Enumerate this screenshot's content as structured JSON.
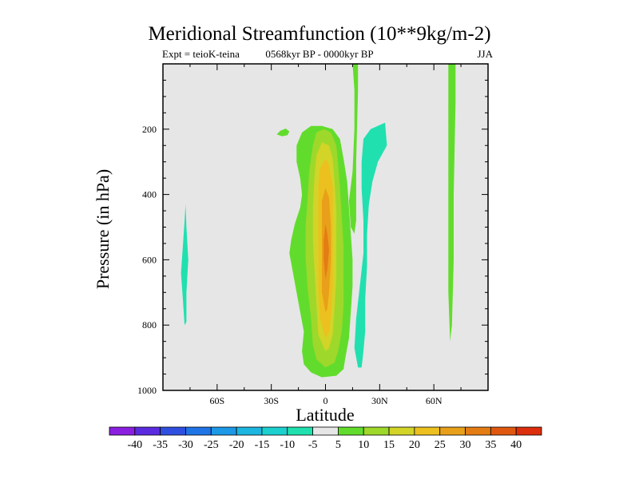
{
  "chart_data": {
    "type": "heatmap",
    "plot_style": "filled contours",
    "title": "Meridional Streamfunction (10**9kg/m-2)",
    "left_string": "Expt = teioK-teina",
    "center_string": "0568kyr BP - 0000kyr BP",
    "right_string": "JJA",
    "xlabel": "Latitude",
    "ylabel": "Pressure (in hPa)",
    "xlim": [
      -90,
      90
    ],
    "ylim": [
      1000,
      0
    ],
    "x_ticks": [
      -60,
      -30,
      0,
      30,
      60
    ],
    "x_tick_labels": [
      "60S",
      "30S",
      "0",
      "30N",
      "60N"
    ],
    "y_ticks": [
      200,
      400,
      600,
      800,
      1000
    ],
    "y_tick_labels": [
      "200",
      "400",
      "600",
      "800",
      "1000"
    ],
    "plot_background": "#e6e6e6",
    "colorbar": {
      "levels": [
        -40,
        -35,
        -30,
        -25,
        -20,
        -15,
        -10,
        -5,
        5,
        10,
        15,
        20,
        25,
        30,
        35,
        40
      ],
      "labels": [
        "-40",
        "-35",
        "-30",
        "-25",
        "-20",
        "-15",
        "-10",
        "-5",
        "5",
        "10",
        "15",
        "20",
        "25",
        "30",
        "35",
        "40"
      ],
      "colors": [
        "#8a1fe0",
        "#5b2be0",
        "#2f4fe0",
        "#1f74e6",
        "#1c98e6",
        "#1cb6e0",
        "#1cd0d0",
        "#20e0b0",
        "#e6e6e6",
        "#62dc2c",
        "#9ed82a",
        "#d2d428",
        "#ecc01e",
        "#e8a01a",
        "#e47c14",
        "#e05810",
        "#dc2e0c"
      ]
    },
    "regions": [
      {
        "name": "equatorial-positive-cell-5",
        "value": 5,
        "outline": [
          [
            -2,
            960
          ],
          [
            -8,
            945
          ],
          [
            -12,
            920
          ],
          [
            -13,
            880
          ],
          [
            -12,
            820
          ],
          [
            -14,
            760
          ],
          [
            -16,
            700
          ],
          [
            -18,
            640
          ],
          [
            -20,
            580
          ],
          [
            -19,
            540
          ],
          [
            -17,
            490
          ],
          [
            -14,
            440
          ],
          [
            -13,
            400
          ],
          [
            -14,
            350
          ],
          [
            -16,
            300
          ],
          [
            -16,
            250
          ],
          [
            -13,
            210
          ],
          [
            -8,
            190
          ],
          [
            -2,
            190
          ],
          [
            4,
            200
          ],
          [
            8,
            230
          ],
          [
            10,
            290
          ],
          [
            12,
            360
          ],
          [
            13,
            440
          ],
          [
            14,
            520
          ],
          [
            15,
            600
          ],
          [
            15,
            680
          ],
          [
            14,
            760
          ],
          [
            13,
            840
          ],
          [
            11,
            900
          ],
          [
            10,
            935
          ],
          [
            6,
            955
          ]
        ]
      },
      {
        "name": "positive-blob-left-5",
        "value": 5,
        "outline": [
          [
            -25,
            205
          ],
          [
            -22,
            198
          ],
          [
            -20,
            207
          ],
          [
            -21,
            218
          ],
          [
            -24,
            222
          ],
          [
            -27,
            216
          ]
        ]
      },
      {
        "name": "positive-inner-10",
        "value": 10,
        "outline": [
          [
            0,
            930
          ],
          [
            -5,
            905
          ],
          [
            -7,
            860
          ],
          [
            -8,
            780
          ],
          [
            -10,
            680
          ],
          [
            -11,
            590
          ],
          [
            -11,
            500
          ],
          [
            -10,
            420
          ],
          [
            -9,
            330
          ],
          [
            -7,
            250
          ],
          [
            -5,
            210
          ],
          [
            -1,
            200
          ],
          [
            3,
            210
          ],
          [
            6,
            250
          ],
          [
            7,
            310
          ],
          [
            8,
            380
          ],
          [
            9,
            470
          ],
          [
            10,
            560
          ],
          [
            10,
            650
          ],
          [
            10,
            740
          ],
          [
            9,
            820
          ],
          [
            7,
            880
          ],
          [
            5,
            915
          ]
        ]
      },
      {
        "name": "positive-inner-15",
        "value": 15,
        "outline": [
          [
            0,
            880
          ],
          [
            -4,
            830
          ],
          [
            -5,
            740
          ],
          [
            -6,
            640
          ],
          [
            -7,
            540
          ],
          [
            -7,
            440
          ],
          [
            -6,
            340
          ],
          [
            -5,
            280
          ],
          [
            -2,
            240
          ],
          [
            2,
            250
          ],
          [
            4,
            290
          ],
          [
            5,
            360
          ],
          [
            6,
            450
          ],
          [
            6,
            550
          ],
          [
            6,
            650
          ],
          [
            5,
            750
          ],
          [
            4,
            830
          ],
          [
            2,
            870
          ]
        ]
      },
      {
        "name": "positive-inner-20",
        "value": 20,
        "outline": [
          [
            0,
            840
          ],
          [
            -3,
            780
          ],
          [
            -4,
            680
          ],
          [
            -4,
            580
          ],
          [
            -4,
            480
          ],
          [
            -4,
            380
          ],
          [
            -3,
            320
          ],
          [
            0,
            290
          ],
          [
            2,
            310
          ],
          [
            4,
            380
          ],
          [
            4,
            480
          ],
          [
            4,
            580
          ],
          [
            4,
            680
          ],
          [
            3,
            770
          ],
          [
            2,
            820
          ]
        ]
      },
      {
        "name": "positive-inner-25",
        "value": 25,
        "outline": [
          [
            0,
            760
          ],
          [
            -2,
            700
          ],
          [
            -2,
            600
          ],
          [
            -2,
            500
          ],
          [
            -2,
            420
          ],
          [
            0,
            380
          ],
          [
            2,
            410
          ],
          [
            3,
            500
          ],
          [
            3,
            600
          ],
          [
            2,
            700
          ],
          [
            1,
            750
          ]
        ]
      },
      {
        "name": "positive-core-30",
        "value": 30,
        "outline": [
          [
            0,
            660
          ],
          [
            -1,
            600
          ],
          [
            -1,
            540
          ],
          [
            0,
            490
          ],
          [
            1,
            520
          ],
          [
            2,
            570
          ],
          [
            1,
            630
          ]
        ]
      },
      {
        "name": "negative-cell-30n",
        "value": -10,
        "outline": [
          [
            18,
            930
          ],
          [
            16,
            870
          ],
          [
            17,
            780
          ],
          [
            19,
            680
          ],
          [
            21,
            580
          ],
          [
            21,
            480
          ],
          [
            20,
            380
          ],
          [
            20,
            300
          ],
          [
            21,
            230
          ],
          [
            25,
            200
          ],
          [
            33,
            180
          ],
          [
            34,
            250
          ],
          [
            29,
            300
          ],
          [
            26,
            360
          ],
          [
            24,
            430
          ],
          [
            23,
            520
          ],
          [
            23,
            620
          ],
          [
            22,
            720
          ],
          [
            22,
            820
          ],
          [
            21,
            880
          ],
          [
            20,
            930
          ]
        ]
      },
      {
        "name": "negative-cell-70s",
        "value": -10,
        "outline": [
          [
            -78,
            800
          ],
          [
            -79,
            720
          ],
          [
            -80,
            640
          ],
          [
            -79,
            560
          ],
          [
            -78,
            480
          ],
          [
            -77.5,
            430
          ],
          [
            -77,
            500
          ],
          [
            -76,
            600
          ],
          [
            -77,
            700
          ],
          [
            -77,
            790
          ]
        ]
      },
      {
        "name": "positive-strip-15n",
        "value": 5,
        "outline": [
          [
            15,
            0
          ],
          [
            18,
            0
          ],
          [
            18,
            80
          ],
          [
            17,
            300
          ],
          [
            17,
            420
          ],
          [
            17,
            480
          ],
          [
            16,
            520
          ],
          [
            14,
            500
          ],
          [
            13,
            420
          ],
          [
            15,
            330
          ],
          [
            16,
            200
          ],
          [
            16,
            80
          ]
        ]
      },
      {
        "name": "positive-strip-70n",
        "value": 5,
        "outline": [
          [
            68,
            0
          ],
          [
            72,
            0
          ],
          [
            72,
            120
          ],
          [
            71,
            400
          ],
          [
            71,
            600
          ],
          [
            70,
            800
          ],
          [
            69,
            850
          ],
          [
            68,
            700
          ],
          [
            68,
            500
          ],
          [
            68,
            300
          ],
          [
            68,
            120
          ]
        ]
      }
    ]
  }
}
